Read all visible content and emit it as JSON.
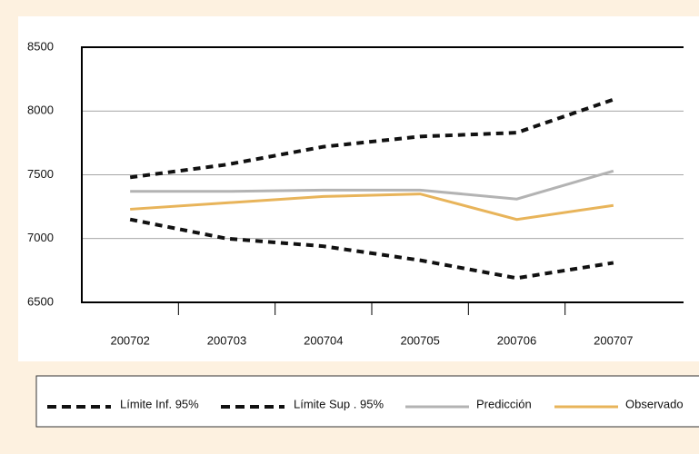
{
  "chart_data": {
    "type": "line",
    "categories": [
      "200702",
      "200703",
      "200704",
      "200705",
      "200706",
      "200707"
    ],
    "series": [
      {
        "name": "Límite Inf. 95%",
        "color": "#111111",
        "dash": true,
        "values": [
          7150,
          7000,
          6940,
          6830,
          6690,
          6810
        ]
      },
      {
        "name": "Límite Sup . 95%",
        "color": "#111111",
        "dash": true,
        "values": [
          7480,
          7580,
          7720,
          7800,
          7830,
          8090
        ]
      },
      {
        "name": "Predicción",
        "color": "#b3b3b3",
        "dash": false,
        "values": [
          7370,
          7370,
          7380,
          7380,
          7310,
          7530
        ]
      },
      {
        "name": "Observado",
        "color": "#e8b45a",
        "dash": false,
        "values": [
          7230,
          7280,
          7330,
          7350,
          7150,
          7260
        ]
      }
    ],
    "ylim": [
      6500,
      8500
    ],
    "yticks": [
      6500,
      7000,
      7500,
      8000,
      8500
    ],
    "grid": true
  }
}
